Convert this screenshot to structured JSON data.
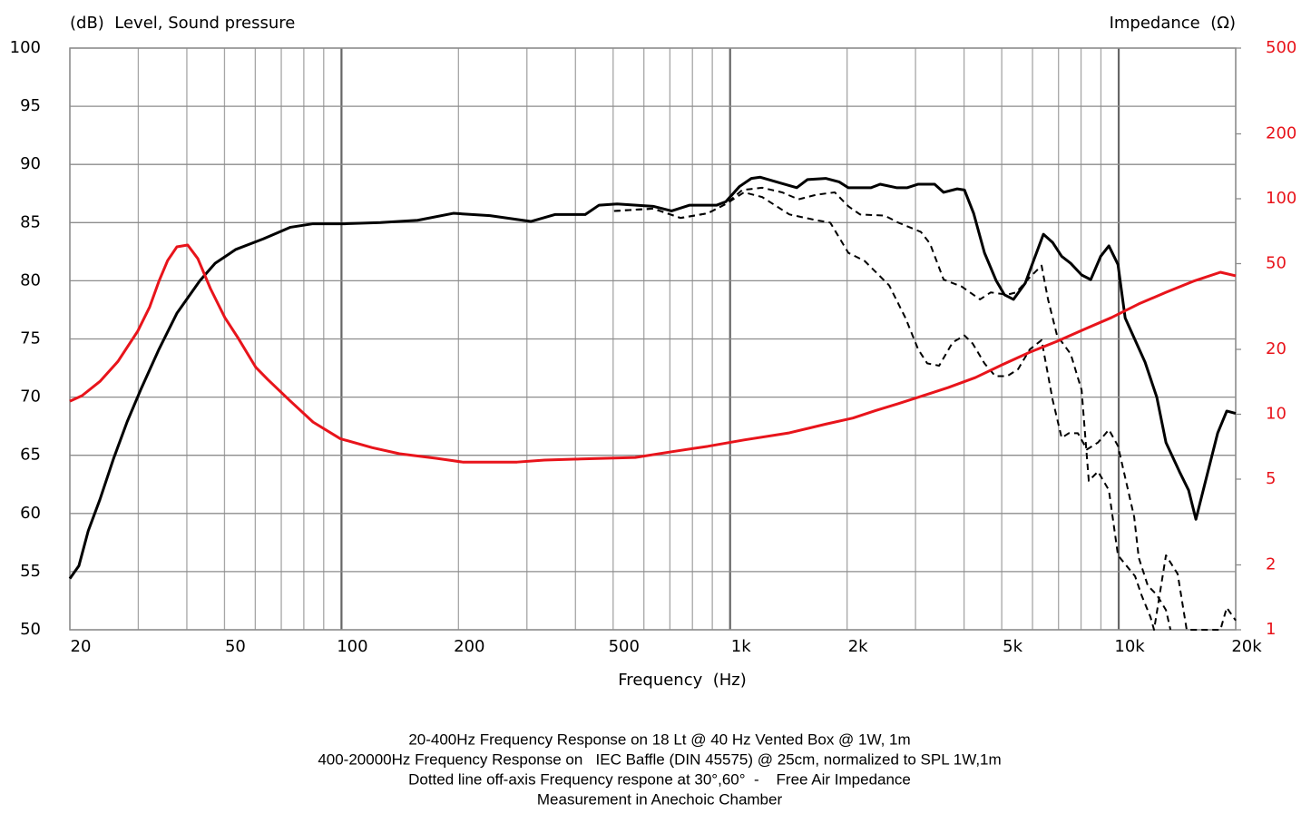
{
  "chart_data": {
    "type": "line",
    "ylabel": "(dB)  Level, Sound pressure",
    "y2label": "Impedance  (Ω)",
    "xlabel": "Frequency  (Hz)",
    "notes": [
      "20-400Hz Frequency Response on 18 Lt @ 40 Hz Vented Box @ 1W, 1m",
      "400-20000Hz Frequency Response on   IEC Baffle (DIN 45575) @ 25cm, normalized to SPL 1W,1m",
      "Dotted line off-axis Frequency respone at 30°,60°  -    Free Air Impedance",
      "Measurement in Anechoic Chamber"
    ],
    "xlog": true,
    "y2log": true,
    "grid": true,
    "xlim": [
      20,
      20000
    ],
    "xticks": [
      20,
      50,
      100,
      200,
      500,
      {
        "value": 1000,
        "label": "1k"
      },
      {
        "value": 2000,
        "label": "2k"
      },
      {
        "value": 5000,
        "label": "5k"
      },
      {
        "value": 10000,
        "label": "10k"
      },
      {
        "value": 20000,
        "label": "20k"
      }
    ],
    "xminor": [
      30,
      40,
      60,
      70,
      80,
      90,
      300,
      400,
      600,
      700,
      800,
      900,
      3000,
      4000,
      6000,
      7000,
      8000,
      9000
    ],
    "ylim": [
      50,
      100
    ],
    "yticks": [
      50,
      55,
      60,
      65,
      70,
      75,
      80,
      85,
      90,
      95,
      100
    ],
    "y2lim": [
      1,
      500
    ],
    "y2ticks": [
      1,
      2,
      5,
      10,
      20,
      50,
      100,
      200,
      500
    ],
    "y2color": "#e8141b",
    "series": [
      {
        "color": "#000000",
        "width": 3,
        "x": [
          20,
          21.1,
          22.3,
          23.9,
          25.9,
          28.1,
          30.4,
          33.9,
          37.7,
          43.2,
          47.3,
          53.5,
          62.9,
          73.9,
          84.5,
          102,
          126,
          157,
          194,
          241,
          307,
          355,
          424,
          460,
          512,
          634,
          707,
          787,
          924,
          975,
          1057,
          1134,
          1196,
          1347,
          1484,
          1582,
          1762,
          1908,
          2015,
          2304,
          2433,
          2680,
          2858,
          3048,
          3359,
          3544,
          3841,
          4010,
          4233,
          4514,
          4840,
          5080,
          5362,
          5748,
          6065,
          6401,
          6757,
          7131,
          7525,
          8027,
          8471,
          8987,
          9434,
          9956,
          10390,
          11690,
          12530,
          13230,
          14330,
          15130,
          15800,
          16850,
          17970,
          18970,
          20000
        ],
        "values": [
          54.4,
          55.5,
          58.5,
          61.2,
          64.7,
          67.9,
          70.6,
          74.1,
          77.2,
          80.0,
          81.5,
          82.7,
          83.6,
          84.6,
          84.9,
          84.9,
          85.0,
          85.2,
          85.8,
          85.6,
          85.1,
          85.7,
          85.7,
          86.5,
          86.6,
          86.4,
          86.0,
          86.5,
          86.5,
          86.8,
          88.1,
          88.8,
          88.9,
          88.4,
          88.0,
          88.7,
          88.8,
          88.5,
          88.0,
          88.0,
          88.3,
          88.0,
          88.0,
          88.3,
          88.3,
          87.6,
          87.9,
          87.8,
          85.8,
          82.4,
          80.0,
          78.8,
          78.4,
          79.8,
          81.9,
          84.0,
          83.3,
          82.1,
          81.5,
          80.5,
          80.1,
          82.1,
          83.0,
          81.4,
          76.8,
          73.0,
          70.0,
          66.1,
          63.6,
          62.0,
          59.5,
          63.2,
          66.9,
          68.8,
          68.6
        ]
      },
      {
        "color": "#000000",
        "width": 2,
        "dash": "7,5",
        "x": [
          503,
          634,
          746,
          876,
          975,
          1075,
          1209,
          1361,
          1500,
          1670,
          1859,
          2015,
          2160,
          2500,
          2709,
          3097,
          3268,
          3544,
          3946,
          4396,
          4686,
          5163,
          5450,
          5905,
          6332,
          6578,
          6939,
          7525,
          8027,
          8375,
          8845,
          9434,
          9956,
          11020,
          11440,
          12070,
          12330,
          13230,
          14180,
          14960,
          18270,
          18970,
          20000
        ],
        "values": [
          86.0,
          86.2,
          85.4,
          85.8,
          86.6,
          87.8,
          88.0,
          87.6,
          87.0,
          87.4,
          87.6,
          86.4,
          85.7,
          85.6,
          85.0,
          84.2,
          83.2,
          80.1,
          79.5,
          78.4,
          79.0,
          78.8,
          79.0,
          80.3,
          81.3,
          78.4,
          75.3,
          73.7,
          70.6,
          62.8,
          63.6,
          62.0,
          56.4,
          54.6,
          53.0,
          51.1,
          50,
          56.4,
          54.8,
          50,
          50,
          51.9,
          50.8
        ]
      },
      {
        "color": "#000000",
        "width": 2,
        "dash": "7,5",
        "x": [
          503,
          634,
          746,
          876,
          975,
          1086,
          1209,
          1421,
          1670,
          1810,
          2015,
          2220,
          2567,
          2827,
          3048,
          3216,
          3451,
          3738,
          4010,
          4210,
          4514,
          4813,
          5163,
          5509,
          5905,
          6332,
          6757,
          7131,
          7444,
          7849,
          8285,
          8845,
          9434,
          9956,
          10960,
          11260,
          11880,
          12530,
          13230,
          13590
        ],
        "values": [
          86.0,
          86.2,
          85.4,
          85.8,
          86.6,
          87.6,
          87.2,
          85.7,
          85.2,
          85.0,
          82.4,
          81.7,
          79.6,
          76.8,
          74.1,
          72.9,
          72.7,
          74.7,
          75.3,
          74.6,
          72.9,
          71.8,
          71.8,
          72.4,
          74.1,
          74.9,
          69.8,
          66.5,
          66.9,
          66.9,
          65.5,
          66.1,
          67.2,
          65.8,
          59.7,
          56.2,
          53.8,
          53.0,
          51.7,
          50
        ]
      },
      {
        "color": "#e8141b",
        "width": 3,
        "axis": "y2",
        "x": [
          20,
          21.5,
          23.9,
          26.6,
          29.9,
          32.1,
          33.9,
          35.7,
          37.7,
          40.2,
          42.7,
          46.0,
          50.1,
          54.1,
          60.2,
          64.6,
          73.9,
          84.5,
          99.3,
          120,
          141,
          175,
          205,
          283,
          333,
          413,
          570,
          707,
          876,
          1086,
          1421,
          1762,
          2070,
          2368,
          2709,
          3183,
          3641,
          4277,
          5025,
          5905,
          6939,
          8154,
          9582,
          11260,
          13230,
          15550,
          18270,
          20000
        ],
        "values": [
          11.5,
          12.2,
          14.2,
          17.6,
          24.3,
          31.5,
          41.4,
          51.7,
          59.8,
          61.0,
          52.7,
          38.3,
          28.1,
          22.7,
          16.5,
          14.5,
          11.5,
          9.2,
          7.7,
          7.0,
          6.56,
          6.25,
          6.0,
          6.0,
          6.13,
          6.2,
          6.3,
          6.7,
          7.1,
          7.6,
          8.2,
          9.0,
          9.6,
          10.4,
          11.2,
          12.3,
          13.3,
          14.8,
          17.0,
          19.4,
          21.8,
          24.8,
          28.1,
          32.5,
          36.8,
          41.4,
          45.6,
          43.9
        ]
      }
    ]
  }
}
